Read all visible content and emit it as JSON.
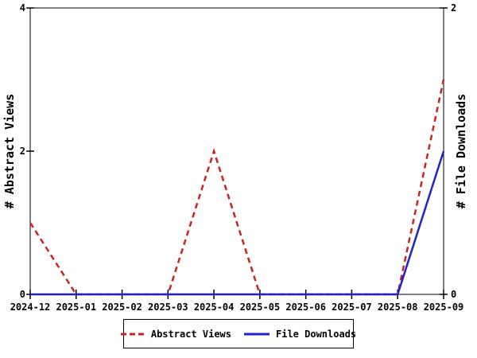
{
  "chart_data": {
    "type": "line",
    "title": "",
    "categories": [
      "2024-12",
      "2025-01",
      "2025-02",
      "2025-03",
      "2025-04",
      "2025-05",
      "2025-06",
      "2025-07",
      "2025-08",
      "2025-09"
    ],
    "left_axis": {
      "label": "# Abstract Views",
      "range": [
        0,
        4
      ],
      "ticks": [
        0,
        2,
        4
      ]
    },
    "right_axis": {
      "label": "# File Downloads",
      "range": [
        0,
        2
      ],
      "ticks": [
        0,
        2
      ]
    },
    "series": [
      {
        "name": "Abstract Views",
        "axis": "left",
        "color": "#cc2222",
        "style": "dashed",
        "values": [
          1,
          0,
          0,
          0,
          2,
          0,
          0,
          0,
          0,
          3
        ]
      },
      {
        "name": "File Downloads",
        "axis": "right",
        "color": "#2222cc",
        "style": "solid",
        "values": [
          0,
          0,
          0,
          0,
          0,
          0,
          0,
          0,
          0,
          1
        ]
      }
    ],
    "legend_position": "bottom",
    "grid": false
  },
  "colors": {
    "axis": "#000000",
    "background": "#ffffff",
    "text": "#000000"
  }
}
